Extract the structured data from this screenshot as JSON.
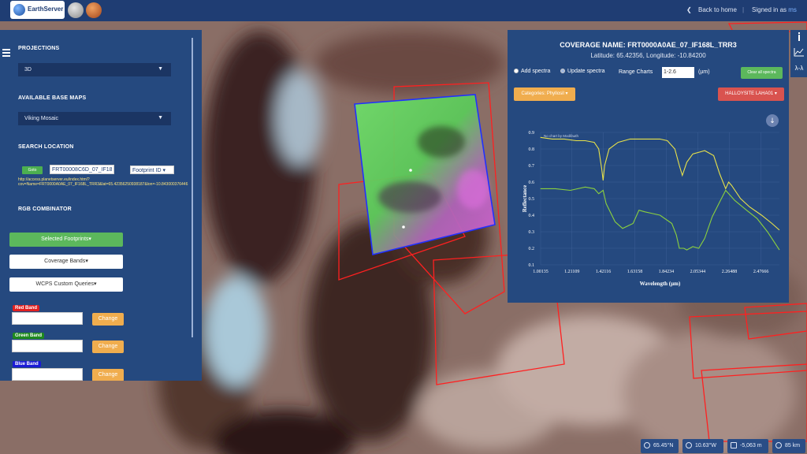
{
  "header": {
    "logo_text": "EarthServer",
    "back_label": "Back to home",
    "separator": "|",
    "signed_in_label": "Signed in as",
    "signed_in_user": "ms"
  },
  "sidebar": {
    "projections_title": "PROJECTIONS",
    "projection_value": "3D",
    "base_maps_title": "AVAILABLE BASE MAPS",
    "base_map_value": "Viking Mosaic",
    "search_title": "SEARCH LOCATION",
    "go_label": "Goto",
    "footprint_value": "FRT00008C6D_07_IF187L",
    "footprint_select": "Footprint ID",
    "url_line1": "http://access.planetserver.eu/index.html?",
    "url_line2": "cov=Name=FRT0000A0AE_07_IF168L_TRR3&lat=65.42356250938187&lon=-10.843000376446",
    "rgb_title": "RGB COMBINATOR",
    "selected_footprints": "Selected Footprints",
    "coverage_bands": "Coverage Bands",
    "wcps_queries": "WCPS Custom Queries",
    "red_band": "Red Band",
    "green_band": "Green Band",
    "blue_band": "Blue Band",
    "change_label": "Change"
  },
  "right_toolbar": [
    "info-icon",
    "chart-icon",
    "lambda-icon"
  ],
  "right_toolbar_lambda": "λ-λ",
  "chart_panel": {
    "title": "COVERAGE NAME: FRT0000A0AE_07_IF168L_TRR3",
    "subtitle": "Latitude: 65.42356, Longitude: -10.84200",
    "add_spectra": "Add spectra",
    "update_spectra": "Update spectra",
    "range_label": "Range Charts",
    "range_value": "1-2.6",
    "range_unit": "(µm)",
    "clear_label": "Clear all spectra",
    "categories_label": "Categories: Phyllosil",
    "halloysite_label": "HALLOYSITE LAHA01",
    "plot_caption": "No chart by Modifauth"
  },
  "chart_data": {
    "type": "line",
    "xlabel": "Wavelength (µm)",
    "ylabel": "Reflectance",
    "xlim": [
      1.00135,
      2.6
    ],
    "ylim": [
      0.1,
      0.9
    ],
    "xticks": [
      1.00135,
      1.21109,
      1.42116,
      1.63158,
      1.84234,
      2.05344,
      2.26488,
      2.47666
    ],
    "xtick_labels": [
      "1.00135",
      "1.21109",
      "1.42116",
      "1.63158",
      "1.84234",
      "2.05344",
      "2.26488",
      "2.47666"
    ],
    "yticks": [
      0.1,
      0.2,
      0.3,
      0.4,
      0.5,
      0.6,
      0.7,
      0.8,
      0.9
    ],
    "ytick_labels": [
      "0.1",
      "0.2",
      "0.3",
      "0.4",
      "0.5",
      "0.6",
      "0.7",
      "0.8",
      "0.9"
    ],
    "grid": true,
    "series": [
      {
        "color": "#e8e24a",
        "x": [
          1.0,
          1.08,
          1.16,
          1.24,
          1.3,
          1.36,
          1.39,
          1.41,
          1.42,
          1.43,
          1.46,
          1.52,
          1.6,
          1.7,
          1.8,
          1.85,
          1.9,
          1.93,
          1.95,
          1.98,
          2.02,
          2.1,
          2.16,
          2.2,
          2.24,
          2.26,
          2.28,
          2.34,
          2.4,
          2.48,
          2.55,
          2.6
        ],
        "y": [
          0.87,
          0.86,
          0.86,
          0.85,
          0.85,
          0.84,
          0.8,
          0.68,
          0.61,
          0.7,
          0.8,
          0.84,
          0.86,
          0.86,
          0.86,
          0.85,
          0.8,
          0.7,
          0.64,
          0.72,
          0.77,
          0.79,
          0.76,
          0.65,
          0.56,
          0.6,
          0.58,
          0.5,
          0.45,
          0.4,
          0.35,
          0.31
        ]
      },
      {
        "color": "#8bd13e",
        "x": [
          1.0,
          1.1,
          1.2,
          1.3,
          1.36,
          1.39,
          1.42,
          1.44,
          1.5,
          1.55,
          1.62,
          1.66,
          1.7,
          1.75,
          1.8,
          1.88,
          1.91,
          1.93,
          1.96,
          1.98,
          2.02,
          2.06,
          2.1,
          2.15,
          2.2,
          2.24,
          2.27,
          2.3,
          2.38,
          2.45,
          2.52,
          2.6
        ],
        "y": [
          0.56,
          0.56,
          0.55,
          0.57,
          0.56,
          0.53,
          0.55,
          0.47,
          0.36,
          0.32,
          0.35,
          0.43,
          0.42,
          0.41,
          0.4,
          0.35,
          0.28,
          0.2,
          0.2,
          0.19,
          0.21,
          0.2,
          0.26,
          0.39,
          0.48,
          0.55,
          0.52,
          0.49,
          0.43,
          0.38,
          0.3,
          0.19
        ]
      }
    ]
  },
  "status_bar": {
    "lat": "65.45°N",
    "lon": "10.63°W",
    "elev": "-5,063 m",
    "alt": "85 km"
  }
}
